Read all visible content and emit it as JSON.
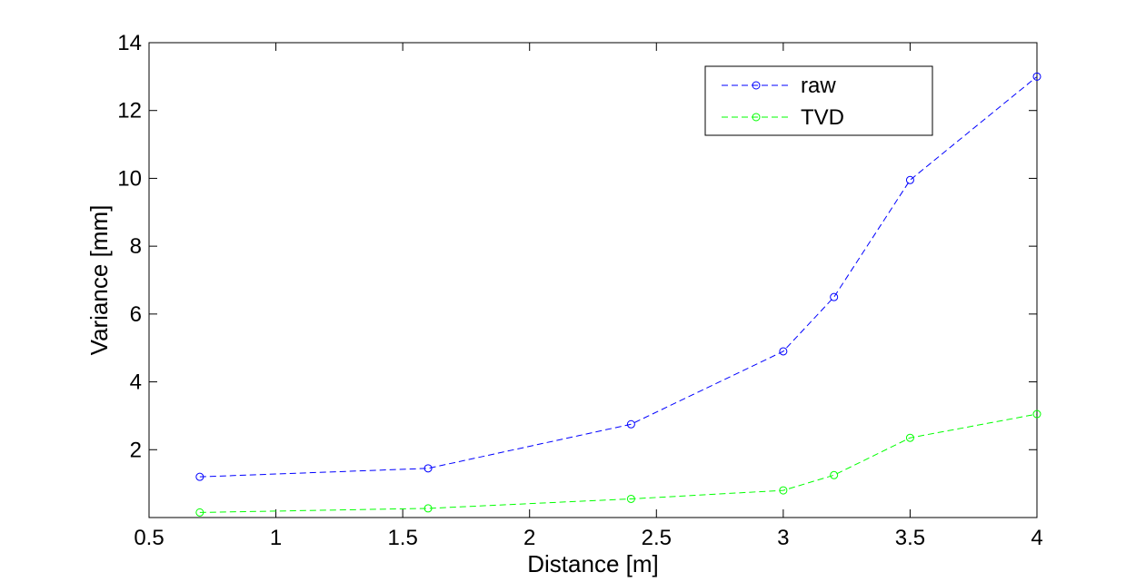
{
  "chart_data": {
    "type": "line",
    "xlabel": "Distance [m]",
    "ylabel": "Variance [mm]",
    "xlim": [
      0.5,
      4
    ],
    "ylim": [
      0,
      14
    ],
    "xticks": [
      0.5,
      1,
      1.5,
      2,
      2.5,
      3,
      3.5,
      4
    ],
    "xtick_labels": [
      "0.5",
      "1",
      "1.5",
      "2",
      "2.5",
      "3",
      "3.5",
      "4"
    ],
    "yticks": [
      2,
      4,
      6,
      8,
      10,
      12,
      14
    ],
    "ytick_labels": [
      "2",
      "4",
      "6",
      "8",
      "10",
      "12",
      "14"
    ],
    "grid": false,
    "legend_position": "top-right",
    "x": [
      0.7,
      1.6,
      2.4,
      3.0,
      3.2,
      3.5,
      4.0
    ],
    "series": [
      {
        "name": "raw",
        "color": "#0000ff",
        "line_style": "dashed",
        "marker": "circle",
        "values": [
          1.2,
          1.45,
          2.75,
          4.9,
          6.5,
          9.95,
          13.0
        ]
      },
      {
        "name": "TVD",
        "color": "#00ff00",
        "line_style": "dashed",
        "marker": "circle",
        "values": [
          0.15,
          0.27,
          0.55,
          0.8,
          1.25,
          2.35,
          3.05
        ]
      }
    ]
  }
}
